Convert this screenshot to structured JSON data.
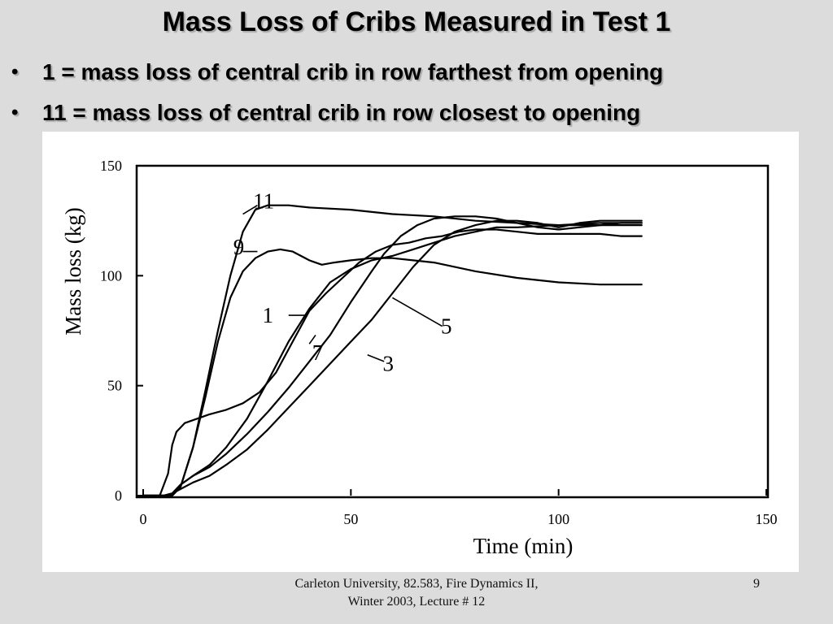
{
  "slide": {
    "title": "Mass Loss of Cribs Measured in Test 1",
    "bullet_symbol": "•",
    "bullets": [
      "1 = mass loss of central crib in row farthest from opening",
      "11 = mass loss of central crib in row closest to opening"
    ]
  },
  "footer": {
    "text": "Carleton University, 82.583, Fire Dynamics II, Winter 2003, Lecture # 12",
    "page": "9"
  },
  "chart_data": {
    "type": "line",
    "xlabel": "Time (min)",
    "ylabel": "Mass loss (kg)",
    "xlim": [
      0,
      150
    ],
    "ylim": [
      0,
      150
    ],
    "xticks": [
      0,
      50,
      100,
      150
    ],
    "yticks": [
      0,
      50,
      100,
      150
    ],
    "grid": false,
    "line_color": "#000000",
    "series": [
      {
        "name": "11",
        "x": [
          0,
          5,
          7,
          9,
          12,
          15,
          18,
          21,
          24,
          27,
          30,
          35,
          40,
          50,
          60,
          70,
          80,
          90,
          100,
          110,
          120
        ],
        "y": [
          0,
          0,
          0,
          4,
          22,
          48,
          75,
          100,
          120,
          130,
          132,
          132,
          131,
          130,
          128,
          127,
          125,
          124,
          123,
          123,
          123
        ]
      },
      {
        "name": "9",
        "x": [
          0,
          5,
          7,
          9,
          12,
          15,
          18,
          21,
          24,
          27,
          30,
          33,
          36,
          40,
          43,
          46,
          50,
          55,
          60,
          70,
          80,
          90,
          100,
          110,
          120
        ],
        "y": [
          0,
          0,
          0,
          4,
          22,
          45,
          70,
          90,
          102,
          108,
          111,
          112,
          111,
          107,
          105,
          106,
          107,
          108,
          108,
          106,
          102,
          99,
          97,
          96,
          96
        ]
      },
      {
        "name": "1",
        "x": [
          0,
          2,
          4,
          6,
          7,
          8,
          10,
          13,
          16,
          20,
          24,
          28,
          32,
          36,
          40,
          44,
          48,
          52,
          56,
          60,
          64,
          68,
          72,
          76,
          80,
          85,
          90,
          95,
          100,
          105,
          110,
          115,
          120
        ],
        "y": [
          0,
          0,
          0,
          10,
          23,
          29,
          33,
          35,
          37,
          39,
          42,
          47,
          56,
          70,
          84,
          92,
          99,
          106,
          111,
          114,
          115,
          117,
          118,
          120,
          121,
          121,
          120,
          119,
          119,
          119,
          119,
          118,
          118
        ]
      },
      {
        "name": "7",
        "x": [
          0,
          5,
          7,
          9,
          12,
          16,
          20,
          25,
          30,
          35,
          40,
          45,
          50,
          55,
          60,
          65,
          70,
          75,
          80,
          85,
          90,
          100,
          110,
          120
        ],
        "y": [
          0,
          0,
          1,
          5,
          9,
          14,
          22,
          35,
          52,
          70,
          85,
          97,
          103,
          107,
          109,
          112,
          115,
          118,
          120,
          122,
          122,
          123,
          124,
          124
        ]
      },
      {
        "name": "5",
        "x": [
          0,
          5,
          7,
          9,
          12,
          16,
          20,
          25,
          30,
          35,
          40,
          45,
          50,
          55,
          58,
          62,
          66,
          70,
          75,
          80,
          85,
          90,
          95,
          100,
          105,
          110,
          115,
          120
        ],
        "y": [
          0,
          0,
          1,
          5,
          9,
          13,
          19,
          28,
          38,
          49,
          61,
          73,
          88,
          102,
          110,
          118,
          123,
          126,
          127,
          127,
          126,
          124,
          122,
          121,
          122,
          123,
          124,
          124
        ]
      },
      {
        "name": "3",
        "x": [
          0,
          5,
          7,
          9,
          12,
          16,
          20,
          25,
          30,
          35,
          40,
          45,
          50,
          55,
          60,
          65,
          70,
          75,
          80,
          85,
          90,
          95,
          100,
          105,
          110,
          115,
          120
        ],
        "y": [
          0,
          0,
          1,
          3,
          6,
          9,
          14,
          21,
          30,
          40,
          50,
          60,
          70,
          80,
          92,
          104,
          114,
          120,
          123,
          125,
          125,
          124,
          122,
          124,
          125,
          125,
          125
        ]
      }
    ],
    "annotations": [
      "11",
      "9",
      "1",
      "7",
      "5",
      "3"
    ]
  }
}
